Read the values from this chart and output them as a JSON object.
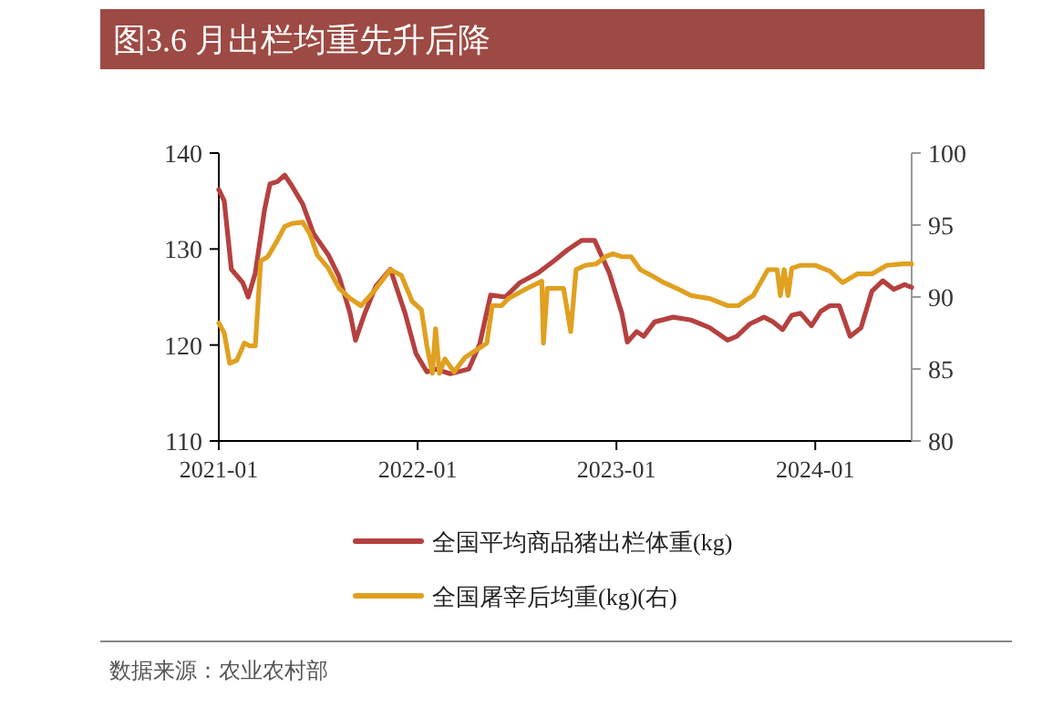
{
  "chart_data": {
    "type": "line",
    "title": "图3.6 月出栏均重先升后降",
    "annotations": [
      "数据来源：农业农村部"
    ],
    "xlim": [
      "2021-01-01",
      "2024-06-26"
    ],
    "xticks": [
      "2021-01",
      "2022-01",
      "2023-01",
      "2024-01"
    ],
    "ylim": [
      110,
      140
    ],
    "yticks": [
      110,
      120,
      130,
      140
    ],
    "y2lim": [
      80,
      100
    ],
    "y2ticks": [
      80,
      85,
      90,
      95,
      100
    ],
    "legend": "bottom",
    "grid": false,
    "series": [
      {
        "name": "全国平均商品猪出栏体重(kg)",
        "color": "#b5413f",
        "axis": "y",
        "x": [
          "2021-01-01",
          "2021-01-11",
          "2021-01-24",
          "2021-02-14",
          "2021-02-24",
          "2021-03-09",
          "2021-03-26",
          "2021-04-05",
          "2021-04-18",
          "2021-05-02",
          "2021-05-15",
          "2021-06-04",
          "2021-06-24",
          "2021-07-21",
          "2021-08-10",
          "2021-08-30",
          "2021-09-09",
          "2021-09-26",
          "2021-10-16",
          "2021-11-12",
          "2021-12-09",
          "2021-12-29",
          "2022-01-18",
          "2022-02-03",
          "2022-03-02",
          "2022-04-05",
          "2022-04-25",
          "2022-05-15",
          "2022-06-11",
          "2022-07-08",
          "2022-08-10",
          "2022-09-09",
          "2022-10-03",
          "2022-10-29",
          "2022-11-22",
          "2022-12-19",
          "2023-01-11",
          "2023-01-21",
          "2023-02-07",
          "2023-02-20",
          "2023-03-12",
          "2023-04-15",
          "2023-05-18",
          "2023-06-21",
          "2023-07-24",
          "2023-08-10",
          "2023-09-03",
          "2023-09-29",
          "2023-10-16",
          "2023-11-02",
          "2023-11-19",
          "2023-12-05",
          "2023-12-25",
          "2024-01-11",
          "2024-01-28",
          "2024-02-14",
          "2024-03-05",
          "2024-03-25",
          "2024-04-14",
          "2024-05-04",
          "2024-05-24",
          "2024-06-13",
          "2024-06-26"
        ],
        "values": [
          136.2,
          135,
          127.9,
          126.5,
          125,
          127.5,
          134.1,
          136.8,
          137,
          137.7,
          136.6,
          134.7,
          131.6,
          129.4,
          127.1,
          123.3,
          120.5,
          123.3,
          126.1,
          127.9,
          123.3,
          119.1,
          117.2,
          117.5,
          117,
          117.5,
          120.1,
          125.2,
          125,
          126.5,
          127.5,
          128.8,
          129.9,
          130.9,
          130.9,
          127.5,
          123.3,
          120.3,
          121.4,
          120.9,
          122.4,
          122.9,
          122.6,
          121.8,
          120.5,
          120.9,
          122.2,
          122.9,
          122.4,
          121.6,
          123.1,
          123.3,
          122,
          123.5,
          124.1,
          124.1,
          120.9,
          121.8,
          125.6,
          126.7,
          125.8,
          126.3,
          126
        ]
      },
      {
        "name": "全国屠宰后均重(kg)(右)",
        "color": "#e0a020",
        "axis": "y2",
        "x": [
          "2021-01-01",
          "2021-01-11",
          "2021-01-21",
          "2021-02-03",
          "2021-02-17",
          "2021-02-27",
          "2021-03-09",
          "2021-03-19",
          "2021-04-01",
          "2021-04-18",
          "2021-05-02",
          "2021-05-15",
          "2021-06-04",
          "2021-06-17",
          "2021-07-01",
          "2021-07-21",
          "2021-08-10",
          "2021-08-30",
          "2021-09-19",
          "2021-10-13",
          "2021-11-12",
          "2021-12-02",
          "2021-12-22",
          "2022-01-08",
          "2022-01-18",
          "2022-01-28",
          "2022-02-03",
          "2022-02-10",
          "2022-02-20",
          "2022-03-09",
          "2022-03-29",
          "2022-04-18",
          "2022-05-08",
          "2022-05-18",
          "2022-06-04",
          "2022-06-17",
          "2022-07-21",
          "2022-08-17",
          "2022-08-20",
          "2022-08-27",
          "2022-09-13",
          "2022-09-26",
          "2022-10-09",
          "2022-10-19",
          "2022-11-05",
          "2022-11-25",
          "2022-12-12",
          "2022-12-25",
          "2023-01-11",
          "2023-01-28",
          "2023-02-14",
          "2023-03-06",
          "2023-03-29",
          "2023-04-22",
          "2023-05-18",
          "2023-06-21",
          "2023-07-24",
          "2023-08-13",
          "2023-08-27",
          "2023-09-09",
          "2023-10-06",
          "2023-10-23",
          "2023-10-29",
          "2023-11-05",
          "2023-11-12",
          "2023-11-19",
          "2023-12-05",
          "2024-01-01",
          "2024-01-28",
          "2024-02-20",
          "2024-03-18",
          "2024-04-14",
          "2024-05-11",
          "2024-06-10",
          "2024-06-26"
        ],
        "values": [
          88.2,
          87.5,
          85.4,
          85.6,
          86.8,
          86.6,
          86.6,
          92.5,
          92.8,
          93.9,
          94.9,
          95.1,
          95.2,
          94.4,
          92.9,
          92,
          90.6,
          89.9,
          89.4,
          90.4,
          91.9,
          91.5,
          89.7,
          89.1,
          86.6,
          84.7,
          87.8,
          84.7,
          85.7,
          84.8,
          85.8,
          86.3,
          86.8,
          89.4,
          89.4,
          89.9,
          90.6,
          91.1,
          86.8,
          90.6,
          90.6,
          90.6,
          87.6,
          91.9,
          92.2,
          92.3,
          92.8,
          93,
          92.8,
          92.8,
          91.9,
          91.5,
          91,
          90.6,
          90.1,
          89.9,
          89.4,
          89.4,
          89.8,
          90.1,
          91.9,
          91.9,
          90.1,
          91.9,
          90.1,
          92,
          92.2,
          92.2,
          91.8,
          91,
          91.6,
          91.6,
          92.2,
          92.3,
          92.3
        ]
      }
    ]
  }
}
